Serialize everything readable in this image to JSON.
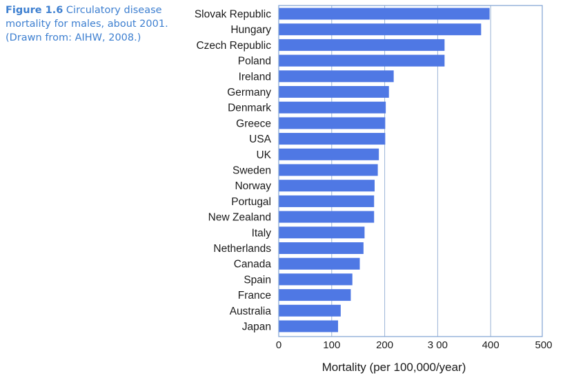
{
  "caption": {
    "figure_label": "Figure 1.6",
    "text": "Circulatory disease mortality for males, about 2001. (Drawn from: AIHW, 2008.)"
  },
  "colors": {
    "bar": "#4f78e4",
    "grid": "#9ab3d6",
    "frame": "#7fa2d2"
  },
  "chart_data": {
    "type": "bar",
    "orientation": "horizontal",
    "categories": [
      "Slovak Republic",
      "Hungary",
      "Czech Republic",
      "Poland",
      "Ireland",
      "Germany",
      "Denmark",
      "Greece",
      "USA",
      "UK",
      "Sweden",
      "Norway",
      "Portugal",
      "New Zealand",
      "Italy",
      "Netherlands",
      "Canada",
      "Spain",
      "France",
      "Australia",
      "Japan"
    ],
    "values": [
      398,
      382,
      313,
      313,
      217,
      208,
      202,
      201,
      201,
      189,
      187,
      181,
      180,
      180,
      162,
      160,
      153,
      139,
      136,
      117,
      112
    ],
    "xlabel": "Mortality (per 100,000/year)",
    "xlim": [
      0,
      500
    ],
    "xticks": [
      0,
      100,
      200,
      300,
      400,
      500
    ],
    "xtick_labels": [
      "0",
      "100",
      "200",
      "3 00",
      "400",
      "500"
    ],
    "grid": "vertical"
  }
}
